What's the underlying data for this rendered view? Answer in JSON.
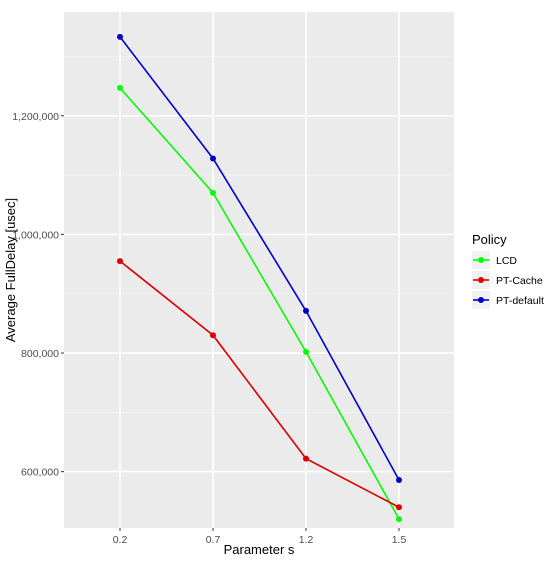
{
  "chart_data": {
    "type": "line",
    "x": [
      "0.2",
      "0.7",
      "1.2",
      "1.5"
    ],
    "xlabel": "Parameter s",
    "ylabel": "Average FullDelay [usec]",
    "y_ticks": [
      600000,
      800000,
      1000000,
      1200000
    ],
    "y_tick_labels": [
      "600,000",
      "800,000",
      "1,000,000",
      "1,200,000"
    ],
    "ylim": [
      505000,
      1375000
    ],
    "grid": true,
    "legend": {
      "title": "Policy",
      "position": "right"
    },
    "series": [
      {
        "name": "LCD",
        "color": "#00ff00",
        "values": [
          1247000,
          1070000,
          802000,
          520000
        ]
      },
      {
        "name": "PT-Cache",
        "color": "#dd0000",
        "values": [
          955000,
          830000,
          622000,
          540000
        ]
      },
      {
        "name": "PT-default",
        "color": "#0000cc",
        "values": [
          1333000,
          1128000,
          871000,
          586000
        ]
      }
    ]
  }
}
